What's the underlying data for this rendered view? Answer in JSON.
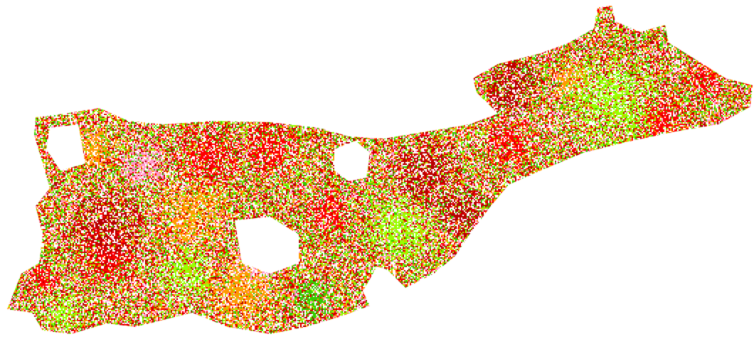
{
  "map": {
    "type": "classified-raster",
    "background": "#ffffff",
    "class_colors": {
      "red": "#ff0000",
      "dark_red": "#b80000",
      "orange": "#ff9900",
      "pink": "#ff99cc",
      "yellow_green": "#99ff00",
      "green": "#33cc00"
    }
  }
}
